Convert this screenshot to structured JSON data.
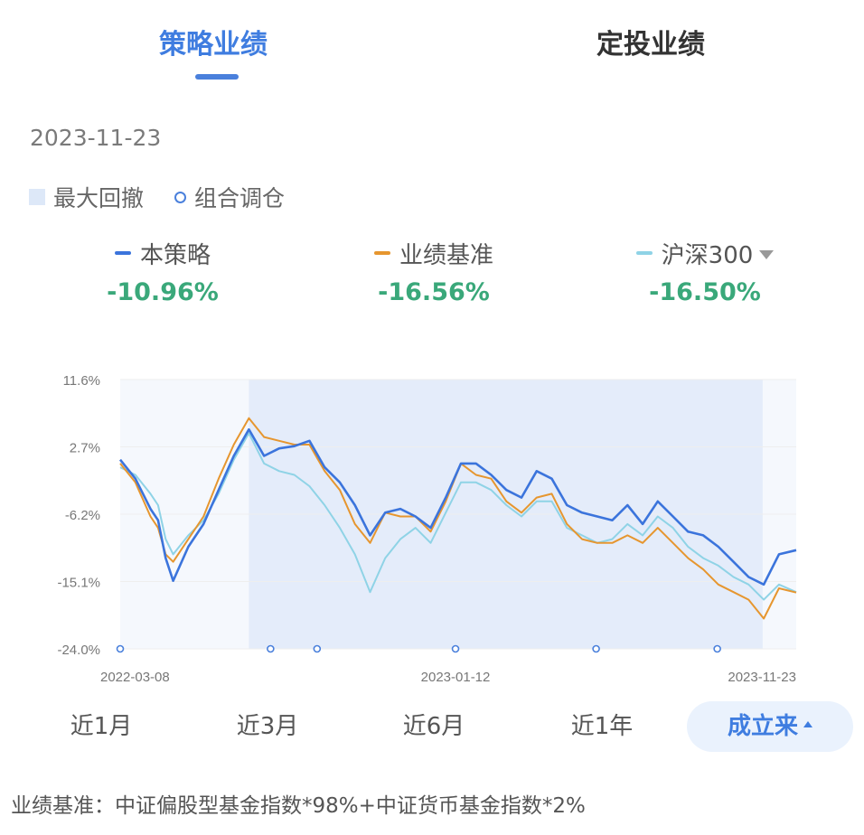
{
  "tabs": {
    "active": "策略业绩",
    "inactive": "定投业绩"
  },
  "date": "2023-11-23",
  "legend": {
    "drawdown": "最大回撤",
    "rebalance": "组合调仓"
  },
  "series": [
    {
      "name": "本策略",
      "value": "-10.96%",
      "color": "#3b74dc"
    },
    {
      "name": "业绩基准",
      "value": "-16.56%",
      "color": "#e6962f"
    },
    {
      "name": "沪深300",
      "value": "-16.50%",
      "color": "#8fd3e6"
    }
  ],
  "periods": [
    "近1月",
    "近3月",
    "近6月",
    "近1年",
    "成立来"
  ],
  "footnote": "业绩基准：中证偏股型基金指数*98%+中证货币基金指数*2%",
  "colors": {
    "accent": "#3f7de0",
    "positive_text": "#3aa87a",
    "drawdown_fill": "#dde8f8",
    "grid": "#eeeeee"
  },
  "chart_data": {
    "type": "line",
    "x_range": [
      "2022-03-08",
      "2023-11-23"
    ],
    "x_tick_labels": [
      "2022-03-08",
      "2023-01-12",
      "2023-11-23"
    ],
    "y_tick_labels": [
      "11.6%",
      "2.7%",
      "-6.2%",
      "-15.1%",
      "-24.0%"
    ],
    "ylim": [
      -24.0,
      11.6
    ],
    "max_drawdown_period": [
      "2022-07-05",
      "2023-10-23"
    ],
    "rebalance_dates": [
      "2022-03-08",
      "2022-07-25",
      "2022-09-06",
      "2023-01-12",
      "2023-05-22",
      "2023-09-11"
    ],
    "series": [
      {
        "name": "本策略",
        "points": [
          [
            "2022-03-08",
            1.0
          ],
          [
            "2022-03-22",
            -1.5
          ],
          [
            "2022-04-05",
            -5.5
          ],
          [
            "2022-04-12",
            -7.0
          ],
          [
            "2022-04-19",
            -12.0
          ],
          [
            "2022-04-26",
            -15.0
          ],
          [
            "2022-05-10",
            -10.5
          ],
          [
            "2022-05-24",
            -7.5
          ],
          [
            "2022-06-07",
            -3.0
          ],
          [
            "2022-06-21",
            1.5
          ],
          [
            "2022-07-05",
            5.0
          ],
          [
            "2022-07-19",
            1.5
          ],
          [
            "2022-08-02",
            2.5
          ],
          [
            "2022-08-16",
            2.8
          ],
          [
            "2022-08-30",
            3.5
          ],
          [
            "2022-09-13",
            0.0
          ],
          [
            "2022-09-27",
            -2.0
          ],
          [
            "2022-10-11",
            -5.0
          ],
          [
            "2022-10-25",
            -9.0
          ],
          [
            "2022-11-08",
            -6.0
          ],
          [
            "2022-11-22",
            -5.5
          ],
          [
            "2022-12-06",
            -6.5
          ],
          [
            "2022-12-20",
            -8.0
          ],
          [
            "2023-01-03",
            -4.0
          ],
          [
            "2023-01-17",
            0.5
          ],
          [
            "2023-01-31",
            0.5
          ],
          [
            "2023-02-14",
            -1.0
          ],
          [
            "2023-02-28",
            -3.0
          ],
          [
            "2023-03-14",
            -4.0
          ],
          [
            "2023-03-28",
            -0.5
          ],
          [
            "2023-04-11",
            -1.5
          ],
          [
            "2023-04-25",
            -5.0
          ],
          [
            "2023-05-09",
            -6.0
          ],
          [
            "2023-05-23",
            -6.5
          ],
          [
            "2023-06-06",
            -7.0
          ],
          [
            "2023-06-20",
            -5.0
          ],
          [
            "2023-07-04",
            -7.5
          ],
          [
            "2023-07-18",
            -4.5
          ],
          [
            "2023-08-01",
            -6.5
          ],
          [
            "2023-08-15",
            -8.5
          ],
          [
            "2023-08-29",
            -9.0
          ],
          [
            "2023-09-12",
            -10.5
          ],
          [
            "2023-09-26",
            -12.5
          ],
          [
            "2023-10-10",
            -14.5
          ],
          [
            "2023-10-24",
            -15.5
          ],
          [
            "2023-11-07",
            -11.5
          ],
          [
            "2023-11-23",
            -10.96
          ]
        ]
      },
      {
        "name": "业绩基准",
        "points": [
          [
            "2022-03-08",
            0.5
          ],
          [
            "2022-03-22",
            -2.0
          ],
          [
            "2022-04-05",
            -6.5
          ],
          [
            "2022-04-12",
            -8.0
          ],
          [
            "2022-04-19",
            -11.5
          ],
          [
            "2022-04-26",
            -12.5
          ],
          [
            "2022-05-10",
            -9.5
          ],
          [
            "2022-05-24",
            -6.5
          ],
          [
            "2022-06-07",
            -1.5
          ],
          [
            "2022-06-21",
            3.0
          ],
          [
            "2022-07-05",
            6.5
          ],
          [
            "2022-07-19",
            4.0
          ],
          [
            "2022-08-02",
            3.5
          ],
          [
            "2022-08-16",
            3.0
          ],
          [
            "2022-08-30",
            3.0
          ],
          [
            "2022-09-13",
            -0.5
          ],
          [
            "2022-09-27",
            -3.0
          ],
          [
            "2022-10-11",
            -7.5
          ],
          [
            "2022-10-25",
            -10.0
          ],
          [
            "2022-11-08",
            -6.0
          ],
          [
            "2022-11-22",
            -6.5
          ],
          [
            "2022-12-06",
            -6.5
          ],
          [
            "2022-12-20",
            -8.5
          ],
          [
            "2023-01-03",
            -4.5
          ],
          [
            "2023-01-17",
            0.5
          ],
          [
            "2023-01-31",
            -1.0
          ],
          [
            "2023-02-14",
            -1.5
          ],
          [
            "2023-02-28",
            -4.5
          ],
          [
            "2023-03-14",
            -6.0
          ],
          [
            "2023-03-28",
            -4.0
          ],
          [
            "2023-04-11",
            -3.5
          ],
          [
            "2023-04-25",
            -7.5
          ],
          [
            "2023-05-09",
            -9.5
          ],
          [
            "2023-05-23",
            -10.0
          ],
          [
            "2023-06-06",
            -10.0
          ],
          [
            "2023-06-20",
            -9.0
          ],
          [
            "2023-07-04",
            -10.0
          ],
          [
            "2023-07-18",
            -8.0
          ],
          [
            "2023-08-01",
            -10.0
          ],
          [
            "2023-08-15",
            -12.0
          ],
          [
            "2023-08-29",
            -13.5
          ],
          [
            "2023-09-12",
            -15.5
          ],
          [
            "2023-09-26",
            -16.5
          ],
          [
            "2023-10-10",
            -17.5
          ],
          [
            "2023-10-24",
            -20.0
          ],
          [
            "2023-11-07",
            -16.0
          ],
          [
            "2023-11-23",
            -16.56
          ]
        ]
      },
      {
        "name": "沪深300",
        "points": [
          [
            "2022-03-08",
            0.0
          ],
          [
            "2022-03-22",
            -1.0
          ],
          [
            "2022-04-05",
            -3.5
          ],
          [
            "2022-04-12",
            -5.0
          ],
          [
            "2022-04-19",
            -9.5
          ],
          [
            "2022-04-26",
            -11.5
          ],
          [
            "2022-05-10",
            -9.0
          ],
          [
            "2022-05-24",
            -7.0
          ],
          [
            "2022-06-07",
            -3.5
          ],
          [
            "2022-06-21",
            1.0
          ],
          [
            "2022-07-05",
            4.5
          ],
          [
            "2022-07-19",
            0.5
          ],
          [
            "2022-08-02",
            -0.5
          ],
          [
            "2022-08-16",
            -1.0
          ],
          [
            "2022-08-30",
            -2.5
          ],
          [
            "2022-09-13",
            -5.0
          ],
          [
            "2022-09-27",
            -8.0
          ],
          [
            "2022-10-11",
            -11.5
          ],
          [
            "2022-10-25",
            -16.5
          ],
          [
            "2022-11-08",
            -12.0
          ],
          [
            "2022-11-22",
            -9.5
          ],
          [
            "2022-12-06",
            -8.0
          ],
          [
            "2022-12-20",
            -10.0
          ],
          [
            "2023-01-03",
            -6.0
          ],
          [
            "2023-01-17",
            -2.0
          ],
          [
            "2023-01-31",
            -2.0
          ],
          [
            "2023-02-14",
            -3.0
          ],
          [
            "2023-02-28",
            -5.0
          ],
          [
            "2023-03-14",
            -6.5
          ],
          [
            "2023-03-28",
            -4.5
          ],
          [
            "2023-04-11",
            -4.5
          ],
          [
            "2023-04-25",
            -8.0
          ],
          [
            "2023-05-09",
            -9.0
          ],
          [
            "2023-05-23",
            -10.0
          ],
          [
            "2023-06-06",
            -9.5
          ],
          [
            "2023-06-20",
            -7.5
          ],
          [
            "2023-07-04",
            -9.0
          ],
          [
            "2023-07-18",
            -6.5
          ],
          [
            "2023-08-01",
            -8.0
          ],
          [
            "2023-08-15",
            -10.5
          ],
          [
            "2023-08-29",
            -12.0
          ],
          [
            "2023-09-12",
            -13.0
          ],
          [
            "2023-09-26",
            -14.5
          ],
          [
            "2023-10-10",
            -15.5
          ],
          [
            "2023-10-24",
            -17.5
          ],
          [
            "2023-11-07",
            -15.5
          ],
          [
            "2023-11-23",
            -16.5
          ]
        ]
      }
    ]
  }
}
